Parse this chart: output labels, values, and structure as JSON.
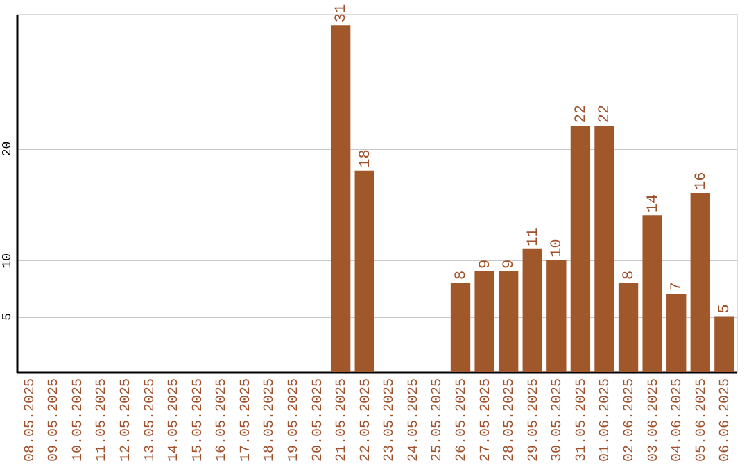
{
  "chart_data": {
    "type": "bar",
    "categories": [
      "08.05.2025",
      "09.05.2025",
      "10.05.2025",
      "11.05.2025",
      "12.05.2025",
      "13.05.2025",
      "14.05.2025",
      "15.05.2025",
      "16.05.2025",
      "17.05.2025",
      "18.05.2025",
      "19.05.2025",
      "20.05.2025",
      "21.05.2025",
      "22.05.2025",
      "23.05.2025",
      "24.05.2025",
      "25.05.2025",
      "26.05.2025",
      "27.05.2025",
      "28.05.2025",
      "29.05.2025",
      "30.05.2025",
      "31.05.2025",
      "01.06.2025",
      "02.06.2025",
      "03.06.2025",
      "04.06.2025",
      "05.06.2025",
      "06.06.2025"
    ],
    "values": [
      0,
      0,
      0,
      0,
      0,
      0,
      0,
      0,
      0,
      0,
      0,
      0,
      0,
      31,
      18,
      0,
      0,
      0,
      8,
      9,
      9,
      11,
      10,
      22,
      22,
      8,
      14,
      7,
      16,
      5
    ],
    "value_labels": [
      null,
      null,
      null,
      null,
      null,
      null,
      null,
      null,
      null,
      null,
      null,
      null,
      null,
      "31",
      "18",
      null,
      null,
      null,
      "8",
      "9",
      "9",
      "11",
      "10",
      "22",
      "22",
      "8",
      "14",
      "7",
      "16",
      "5"
    ],
    "color": "#a0572a",
    "ylim": [
      0,
      32
    ],
    "yticks": [
      5,
      10,
      20
    ],
    "grid": "y"
  }
}
